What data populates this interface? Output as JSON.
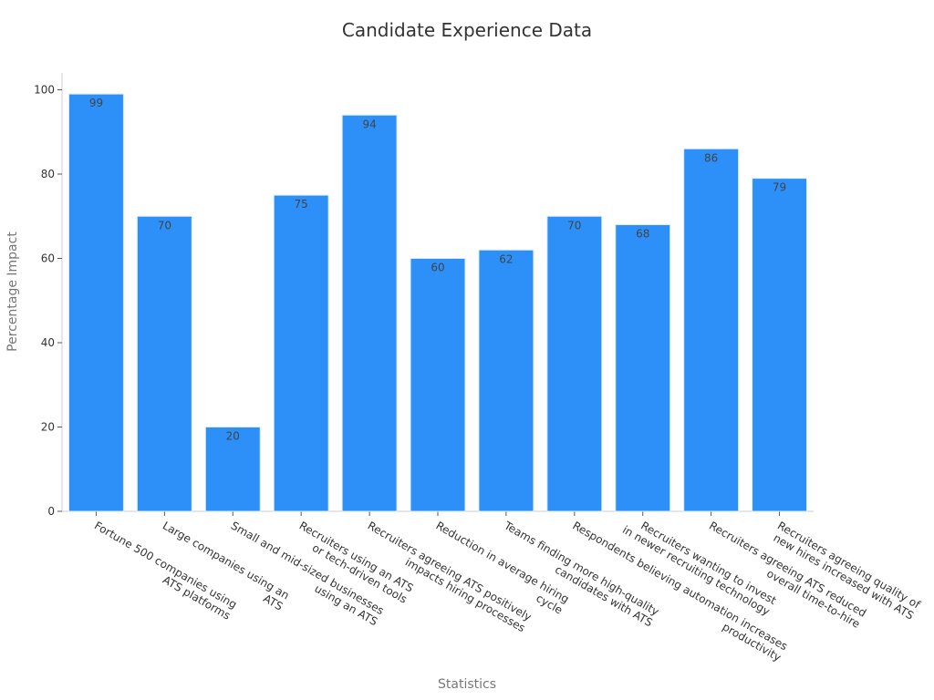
{
  "chart_data": {
    "type": "bar",
    "title": "Candidate Experience Data",
    "xlabel": "Statistics",
    "ylabel": "Percentage Impact",
    "ylim": [
      0,
      104
    ],
    "yticks": [
      0,
      20,
      40,
      60,
      80,
      100
    ],
    "grid": false,
    "legend": "none",
    "bar_color": "#2d90f8",
    "categories": [
      [
        "Fortune 500 companies using",
        "ATS platforms"
      ],
      [
        "Large companies using an",
        "ATS"
      ],
      [
        "Small and mid-sized businesses",
        "using an ATS"
      ],
      [
        "Recruiters using an ATS",
        "or tech-driven tools"
      ],
      [
        "Recruiters agreeing ATS positively",
        "impacts hiring processes"
      ],
      [
        "Reduction in average hiring",
        "cycle"
      ],
      [
        "Teams finding more high-quality",
        "candidates with ATS"
      ],
      [
        "Respondents believing automation increases",
        "productivity"
      ],
      [
        "Recruiters wanting to invest",
        "in newer recruiting technology"
      ],
      [
        "Recruiters agreeing ATS reduced",
        "overall time-to-hire"
      ],
      [
        "Recruiters agreeing quality of",
        "new hires increased with ATS"
      ]
    ],
    "values": [
      99,
      70,
      20,
      75,
      94,
      60,
      62,
      70,
      68,
      86,
      79
    ]
  }
}
